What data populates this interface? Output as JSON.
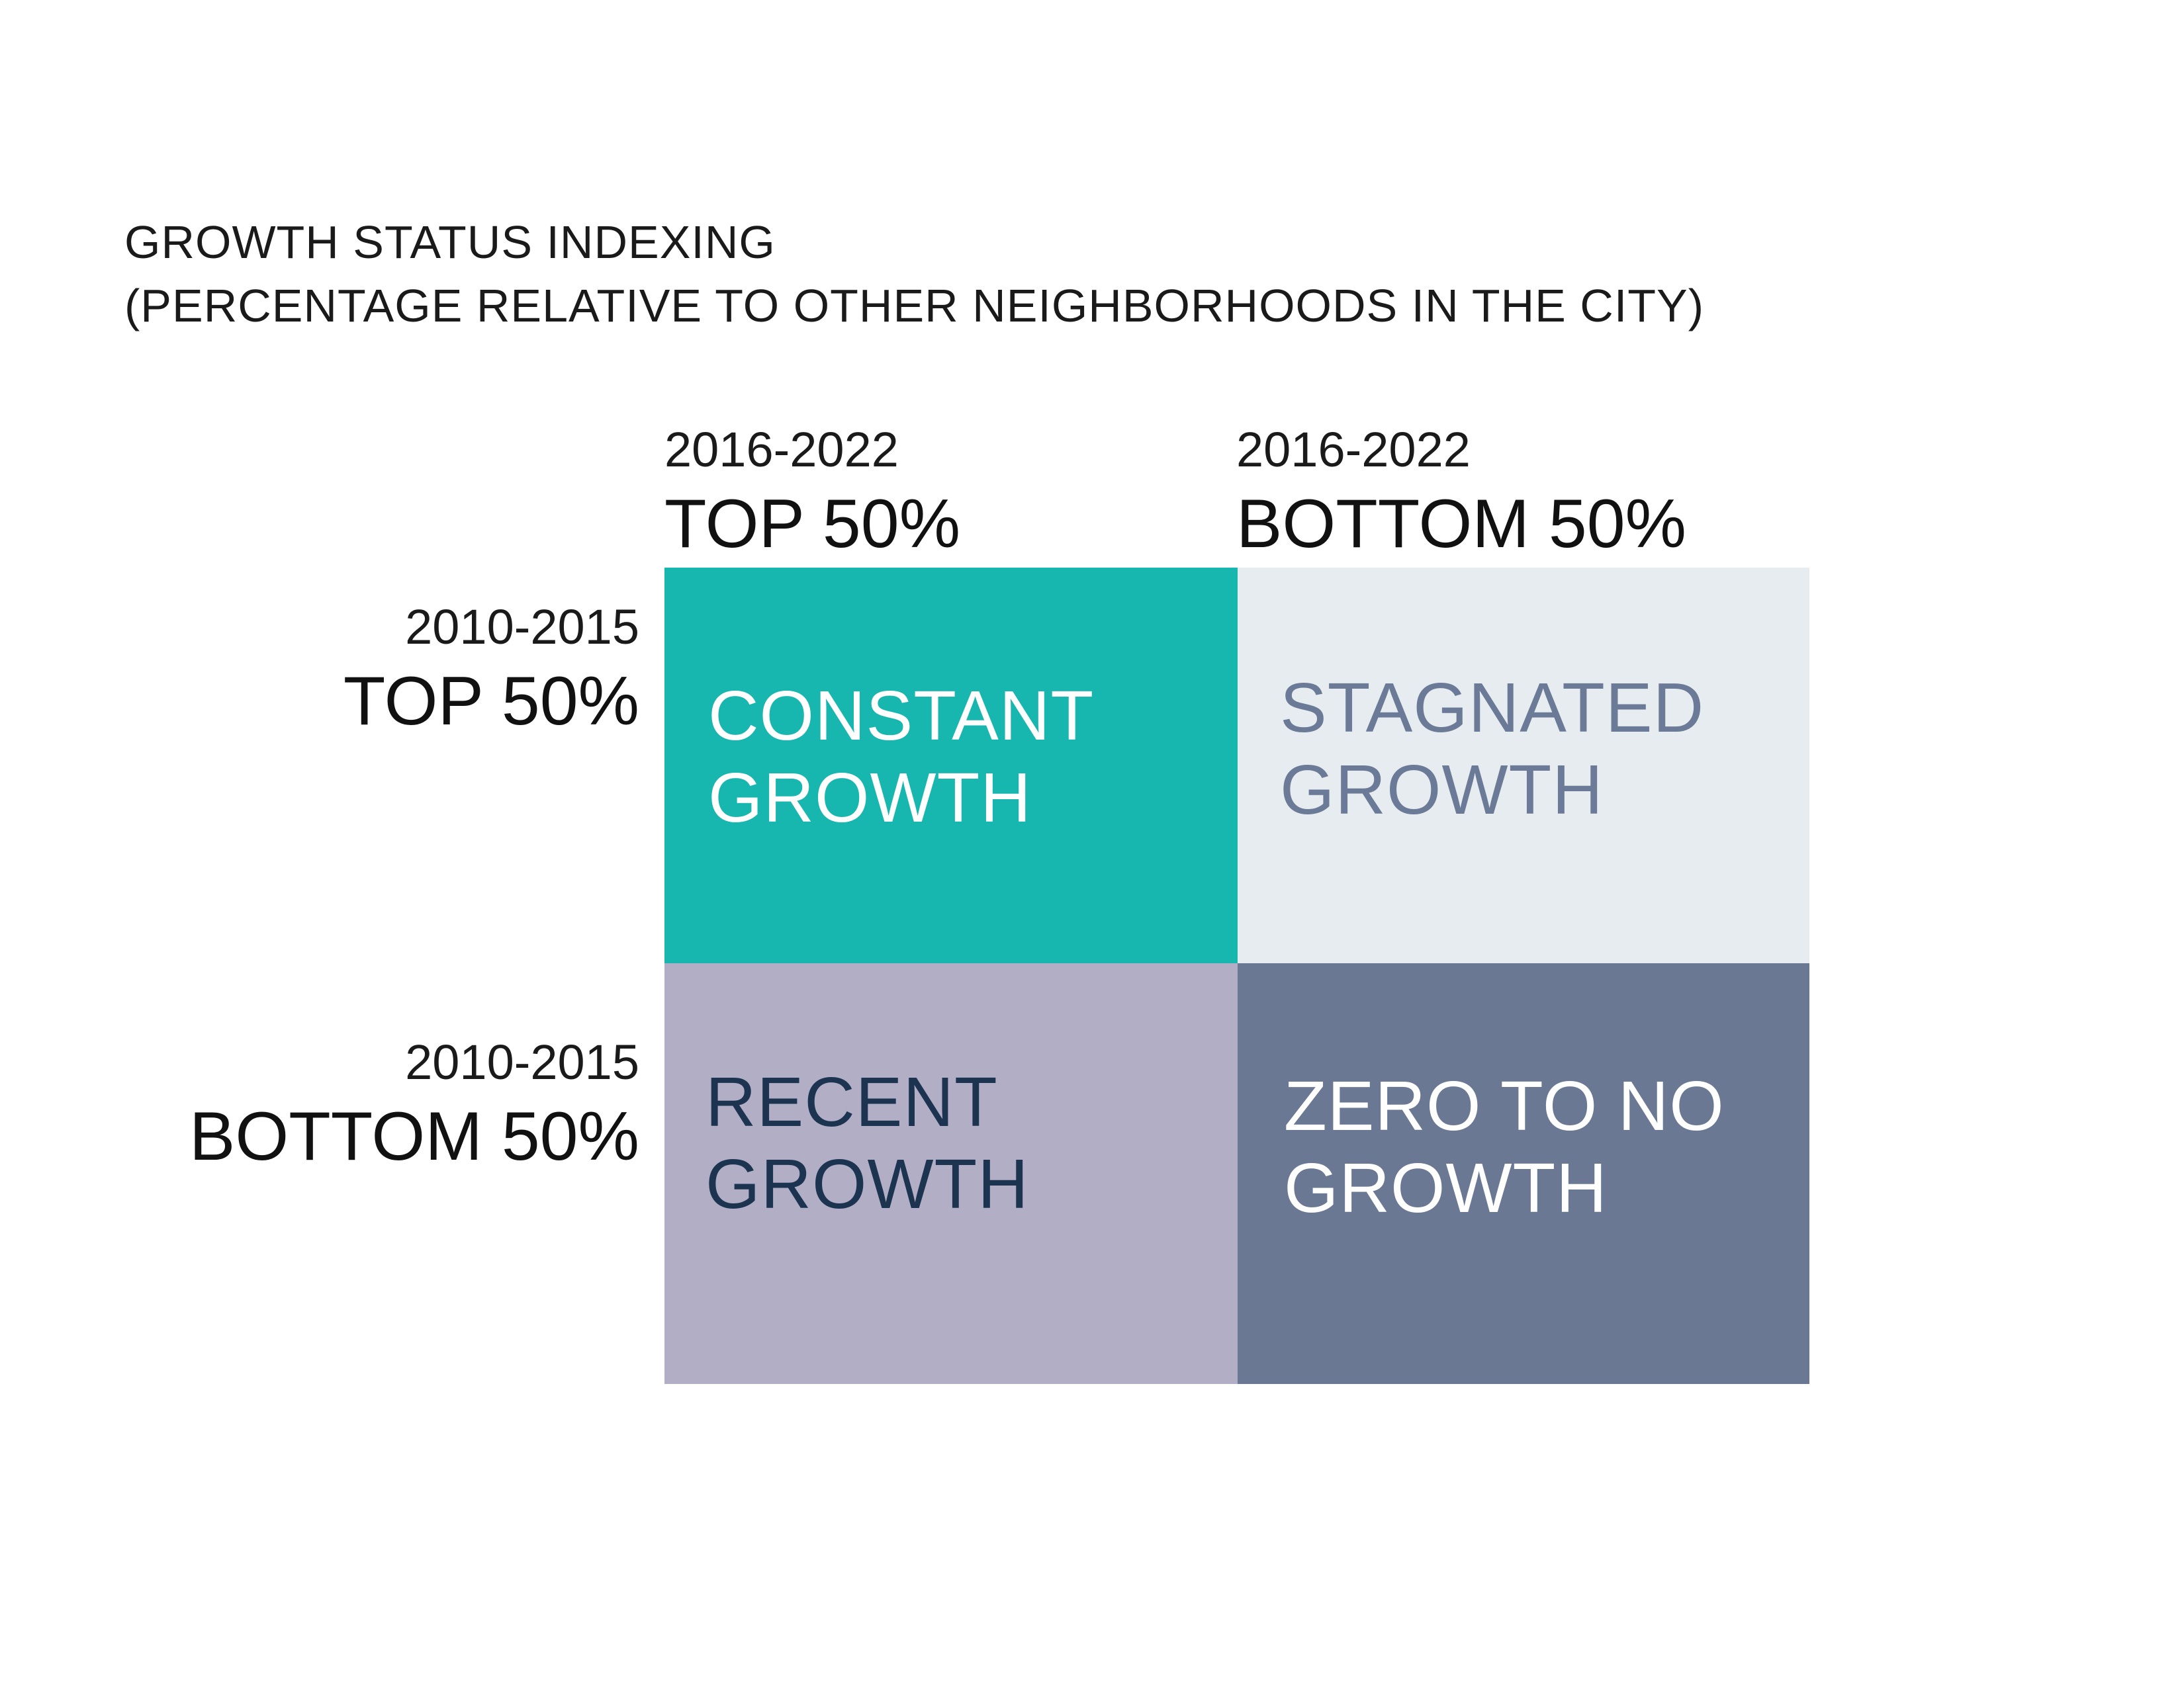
{
  "title": {
    "line1": "GROWTH STATUS INDEXING",
    "line2": "(PERCENTAGE RELATIVE TO OTHER NEIGHBORHOODS IN THE CITY)"
  },
  "columns": [
    {
      "period": "2016-2022",
      "rank": "TOP 50%"
    },
    {
      "period": "2016-2022",
      "rank": "BOTTOM 50%"
    }
  ],
  "rows": [
    {
      "period": "2010-2015",
      "rank": "TOP 50%"
    },
    {
      "period": "2010-2015",
      "rank": "BOTTOM 50%"
    }
  ],
  "cells": {
    "constant": {
      "line1": "CONSTANT",
      "line2": "GROWTH",
      "bg": "#17b7b0",
      "text": "#ffffff"
    },
    "stagnated": {
      "line1": "STAGNATED",
      "line2": "GROWTH",
      "bg": "#e7ecf1",
      "text": "#6b7a96"
    },
    "recent": {
      "line1": "RECENT",
      "line2": "GROWTH",
      "bg": "#b2aec6",
      "text": "#1c3450"
    },
    "zero": {
      "line1": "ZERO TO NO",
      "line2": "GROWTH",
      "bg": "#6a7893",
      "text": "#ffffff"
    }
  }
}
